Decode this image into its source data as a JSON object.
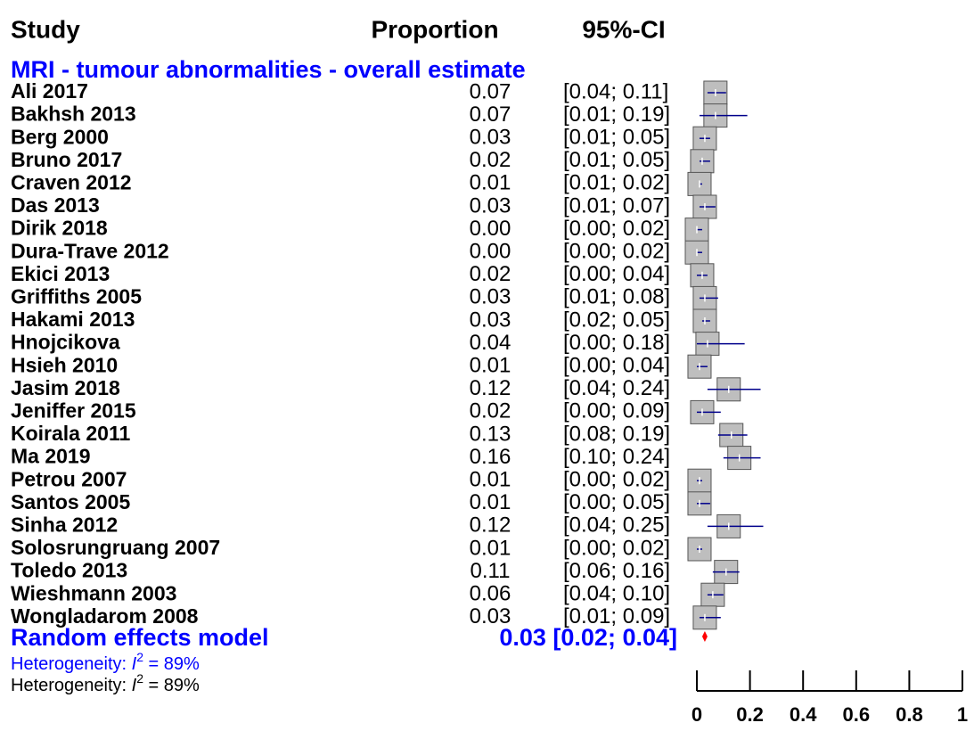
{
  "chart_data": {
    "type": "forest",
    "headers": [
      "Study",
      "Proportion",
      "95%-CI"
    ],
    "subgroup_title": "MRI - tumour abnormalities - overall estimate",
    "categories": [
      "Ali 2017",
      "Bakhsh 2013",
      "Berg 2000",
      "Bruno 2017",
      "Craven 2012",
      "Das 2013",
      "Dirik 2018",
      "Dura-Trave 2012",
      "Ekici 2013",
      "Griffiths 2005",
      "Hakami 2013",
      "Hnojcikova",
      "Hsieh 2010",
      "Jasim 2018",
      "Jeniffer 2015",
      "Koirala 2011",
      "Ma 2019",
      "Petrou 2007",
      "Santos 2005",
      "Sinha 2012",
      "Solosrungruang 2007",
      "Toledo 2013",
      "Wieshmann 2003",
      "Wongladarom 2008"
    ],
    "values": [
      0.07,
      0.07,
      0.03,
      0.02,
      0.01,
      0.03,
      0,
      0,
      0.02,
      0.03,
      0.03,
      0.04,
      0.01,
      0.12,
      0.02,
      0.13,
      0.16,
      0.01,
      0.01,
      0.12,
      0.01,
      0.11,
      0.06,
      0.03
    ],
    "value_labels": [
      "0.07",
      "0.07",
      "0.03",
      "0.02",
      "0.01",
      "0.03",
      "0.00",
      "0.00",
      "0.02",
      "0.03",
      "0.03",
      "0.04",
      "0.01",
      "0.12",
      "0.02",
      "0.13",
      "0.16",
      "0.01",
      "0.01",
      "0.12",
      "0.01",
      "0.11",
      "0.06",
      "0.03"
    ],
    "lower": [
      0.04,
      0.01,
      0.01,
      0.01,
      0.01,
      0.01,
      0,
      0,
      0,
      0.01,
      0.02,
      0,
      0,
      0.04,
      0,
      0.08,
      0.1,
      0,
      0,
      0.04,
      0,
      0.06,
      0.04,
      0.01
    ],
    "upper": [
      0.11,
      0.19,
      0.05,
      0.05,
      0.02,
      0.07,
      0.02,
      0.02,
      0.04,
      0.08,
      0.05,
      0.18,
      0.04,
      0.24,
      0.09,
      0.19,
      0.24,
      0.02,
      0.05,
      0.25,
      0.02,
      0.16,
      0.1,
      0.09
    ],
    "ci_labels": [
      "[0.04; 0.11]",
      "[0.01; 0.19]",
      "[0.01; 0.05]",
      "[0.01; 0.05]",
      "[0.01; 0.02]",
      "[0.01; 0.07]",
      "[0.00; 0.02]",
      "[0.00; 0.02]",
      "[0.00; 0.04]",
      "[0.01; 0.08]",
      "[0.02; 0.05]",
      "[0.00; 0.18]",
      "[0.00; 0.04]",
      "[0.04; 0.24]",
      "[0.00; 0.09]",
      "[0.08; 0.19]",
      "[0.10; 0.24]",
      "[0.00; 0.02]",
      "[0.00; 0.05]",
      "[0.04; 0.25]",
      "[0.00; 0.02]",
      "[0.06; 0.16]",
      "[0.04; 0.10]",
      "[0.01; 0.09]"
    ],
    "pooled": {
      "name": "Random effects model",
      "value": 0.03,
      "lower": 0.02,
      "upper": 0.04,
      "label": "0.03 [0.02; 0.04]",
      "color": "#ff0000"
    },
    "heterogeneity": {
      "prefix": "Heterogeneity: ",
      "symbol": "I",
      "exponent": "2",
      "value": " = 89%"
    },
    "box_color": "#bebebe",
    "ci_color": "#00008b",
    "accent_color": "#0000ff",
    "xlim": [
      0,
      1
    ],
    "xticks": [
      0,
      0.2,
      0.4,
      0.6,
      0.8,
      1
    ]
  }
}
